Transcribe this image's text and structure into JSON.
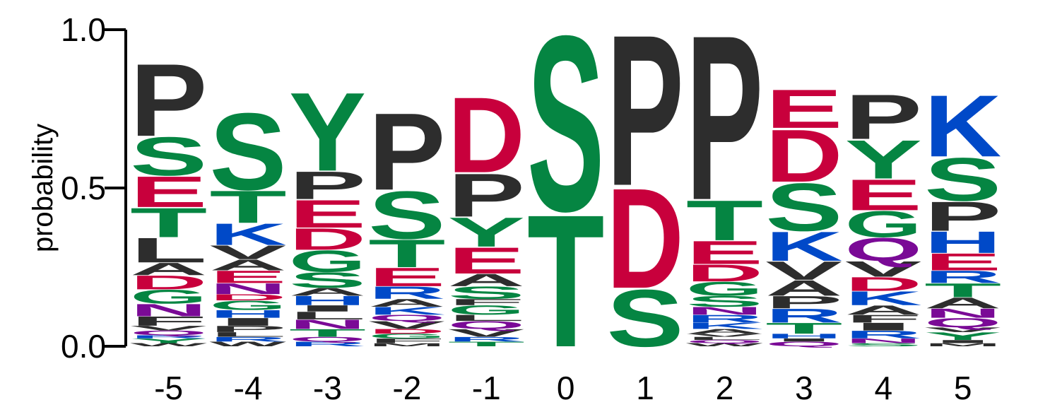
{
  "colors": {
    "P": "#2d2d2d",
    "L": "#2d2d2d",
    "A": "#2d2d2d",
    "V": "#2d2d2d",
    "I": "#2d2d2d",
    "F": "#2d2d2d",
    "W": "#2d2d2d",
    "M": "#2d2d2d",
    "S": "#058542",
    "T": "#058542",
    "Y": "#058542",
    "G": "#058542",
    "C": "#058542",
    "D": "#c8003c",
    "E": "#c8003c",
    "K": "#0049c8",
    "R": "#0049c8",
    "H": "#0049c8",
    "N": "#7a0a96",
    "Q": "#7a0a96"
  },
  "chart_data": {
    "type": "sequence-logo",
    "ylabel": "probability",
    "ylim": [
      0,
      1
    ],
    "yticks": [
      {
        "value": 0,
        "label": "0.0"
      },
      {
        "value": 0.5,
        "label": "0.5"
      },
      {
        "value": 1,
        "label": "1.0"
      }
    ],
    "positions": [
      {
        "label": "-5",
        "letters": [
          {
            "aa": "W",
            "p": 0.01
          },
          {
            "aa": "Y",
            "p": 0.015
          },
          {
            "aa": "R",
            "p": 0.01
          },
          {
            "aa": "Q",
            "p": 0.015
          },
          {
            "aa": "V",
            "p": 0.015
          },
          {
            "aa": "F",
            "p": 0.03
          },
          {
            "aa": "N",
            "p": 0.04
          },
          {
            "aa": "G",
            "p": 0.045
          },
          {
            "aa": "D",
            "p": 0.045
          },
          {
            "aa": "A",
            "p": 0.04
          },
          {
            "aa": "L",
            "p": 0.08
          },
          {
            "aa": "T",
            "p": 0.095
          },
          {
            "aa": "E",
            "p": 0.1
          },
          {
            "aa": "S",
            "p": 0.125
          },
          {
            "aa": "P",
            "p": 0.235
          }
        ]
      },
      {
        "label": "-4",
        "letters": [
          {
            "aa": "W",
            "p": 0.015
          },
          {
            "aa": "R",
            "p": 0.015
          },
          {
            "aa": "L",
            "p": 0.015
          },
          {
            "aa": "P",
            "p": 0.02
          },
          {
            "aa": "I",
            "p": 0.025
          },
          {
            "aa": "H",
            "p": 0.025
          },
          {
            "aa": "G",
            "p": 0.03
          },
          {
            "aa": "D",
            "p": 0.02
          },
          {
            "aa": "N",
            "p": 0.035
          },
          {
            "aa": "E",
            "p": 0.04
          },
          {
            "aa": "A",
            "p": 0.035
          },
          {
            "aa": "V",
            "p": 0.045
          },
          {
            "aa": "K",
            "p": 0.07
          },
          {
            "aa": "T",
            "p": 0.105
          },
          {
            "aa": "S",
            "p": 0.25
          }
        ]
      },
      {
        "label": "-3",
        "letters": [
          {
            "aa": "R",
            "p": 0.015
          },
          {
            "aa": "Q",
            "p": 0.015
          },
          {
            "aa": "T",
            "p": 0.025
          },
          {
            "aa": "N",
            "p": 0.03
          },
          {
            "aa": "L",
            "p": 0.025
          },
          {
            "aa": "I",
            "p": 0.02
          },
          {
            "aa": "H",
            "p": 0.03
          },
          {
            "aa": "A",
            "p": 0.025
          },
          {
            "aa": "S",
            "p": 0.05
          },
          {
            "aa": "G",
            "p": 0.07
          },
          {
            "aa": "D",
            "p": 0.07
          },
          {
            "aa": "E",
            "p": 0.09
          },
          {
            "aa": "P",
            "p": 0.09
          },
          {
            "aa": "Y",
            "p": 0.255
          }
        ]
      },
      {
        "label": "-2",
        "letters": [
          {
            "aa": "M",
            "p": 0.01
          },
          {
            "aa": "F",
            "p": 0.015
          },
          {
            "aa": "G",
            "p": 0.015
          },
          {
            "aa": "D",
            "p": 0.015
          },
          {
            "aa": "V",
            "p": 0.025
          },
          {
            "aa": "Q",
            "p": 0.02
          },
          {
            "aa": "K",
            "p": 0.025
          },
          {
            "aa": "A",
            "p": 0.025
          },
          {
            "aa": "R",
            "p": 0.04
          },
          {
            "aa": "E",
            "p": 0.06
          },
          {
            "aa": "T",
            "p": 0.09
          },
          {
            "aa": "S",
            "p": 0.155
          },
          {
            "aa": "P",
            "p": 0.25
          }
        ]
      },
      {
        "label": "-1",
        "letters": [
          {
            "aa": "T",
            "p": 0.015
          },
          {
            "aa": "R",
            "p": 0.015
          },
          {
            "aa": "V",
            "p": 0.025
          },
          {
            "aa": "Q",
            "p": 0.025
          },
          {
            "aa": "L",
            "p": 0.02
          },
          {
            "aa": "G",
            "p": 0.03
          },
          {
            "aa": "F",
            "p": 0.02
          },
          {
            "aa": "S",
            "p": 0.04
          },
          {
            "aa": "A",
            "p": 0.04
          },
          {
            "aa": "E",
            "p": 0.085
          },
          {
            "aa": "Y",
            "p": 0.095
          },
          {
            "aa": "P",
            "p": 0.14
          },
          {
            "aa": "D",
            "p": 0.245
          }
        ]
      },
      {
        "label": "0",
        "letters": [
          {
            "aa": "T",
            "p": 0.43
          },
          {
            "aa": "S",
            "p": 0.57
          }
        ]
      },
      {
        "label": "1",
        "letters": [
          {
            "aa": "S",
            "p": 0.185
          },
          {
            "aa": "D",
            "p": 0.325
          },
          {
            "aa": "P",
            "p": 0.49
          }
        ]
      },
      {
        "label": "2",
        "letters": [
          {
            "aa": "W",
            "p": 0.01
          },
          {
            "aa": "Q",
            "p": 0.01
          },
          {
            "aa": "L",
            "p": 0.01
          },
          {
            "aa": "V",
            "p": 0.01
          },
          {
            "aa": "A",
            "p": 0.015
          },
          {
            "aa": "K",
            "p": 0.02
          },
          {
            "aa": "R",
            "p": 0.025
          },
          {
            "aa": "N",
            "p": 0.025
          },
          {
            "aa": "S",
            "p": 0.035
          },
          {
            "aa": "G",
            "p": 0.045
          },
          {
            "aa": "D",
            "p": 0.055
          },
          {
            "aa": "E",
            "p": 0.075
          },
          {
            "aa": "T",
            "p": 0.13
          },
          {
            "aa": "P",
            "p": 0.535
          }
        ]
      },
      {
        "label": "3",
        "letters": [
          {
            "aa": "Q",
            "p": 0.015
          },
          {
            "aa": "I",
            "p": 0.01
          },
          {
            "aa": "H",
            "p": 0.015
          },
          {
            "aa": "T",
            "p": 0.035
          },
          {
            "aa": "R",
            "p": 0.045
          },
          {
            "aa": "P",
            "p": 0.04
          },
          {
            "aa": "A",
            "p": 0.05
          },
          {
            "aa": "V",
            "p": 0.06
          },
          {
            "aa": "K",
            "p": 0.095
          },
          {
            "aa": "S",
            "p": 0.155
          },
          {
            "aa": "D",
            "p": 0.17
          },
          {
            "aa": "E",
            "p": 0.125
          }
        ]
      },
      {
        "label": "4",
        "letters": [
          {
            "aa": "S",
            "p": 0.01
          },
          {
            "aa": "N",
            "p": 0.015
          },
          {
            "aa": "R",
            "p": 0.025
          },
          {
            "aa": "I",
            "p": 0.025
          },
          {
            "aa": "F",
            "p": 0.025
          },
          {
            "aa": "A",
            "p": 0.03
          },
          {
            "aa": "K",
            "p": 0.045
          },
          {
            "aa": "D",
            "p": 0.045
          },
          {
            "aa": "V",
            "p": 0.05
          },
          {
            "aa": "Q",
            "p": 0.075
          },
          {
            "aa": "G",
            "p": 0.085
          },
          {
            "aa": "E",
            "p": 0.1
          },
          {
            "aa": "Y",
            "p": 0.125
          },
          {
            "aa": "P",
            "p": 0.145
          }
        ]
      },
      {
        "label": "5",
        "letters": [
          {
            "aa": "M",
            "p": 0.01
          },
          {
            "aa": "I",
            "p": 0.01
          },
          {
            "aa": "Y",
            "p": 0.025
          },
          {
            "aa": "V",
            "p": 0.015
          },
          {
            "aa": "Q",
            "p": 0.03
          },
          {
            "aa": "N",
            "p": 0.03
          },
          {
            "aa": "A",
            "p": 0.035
          },
          {
            "aa": "T",
            "p": 0.045
          },
          {
            "aa": "R",
            "p": 0.04
          },
          {
            "aa": "E",
            "p": 0.055
          },
          {
            "aa": "H",
            "p": 0.07
          },
          {
            "aa": "P",
            "p": 0.095
          },
          {
            "aa": "S",
            "p": 0.14
          },
          {
            "aa": "K",
            "p": 0.2
          }
        ]
      }
    ]
  }
}
